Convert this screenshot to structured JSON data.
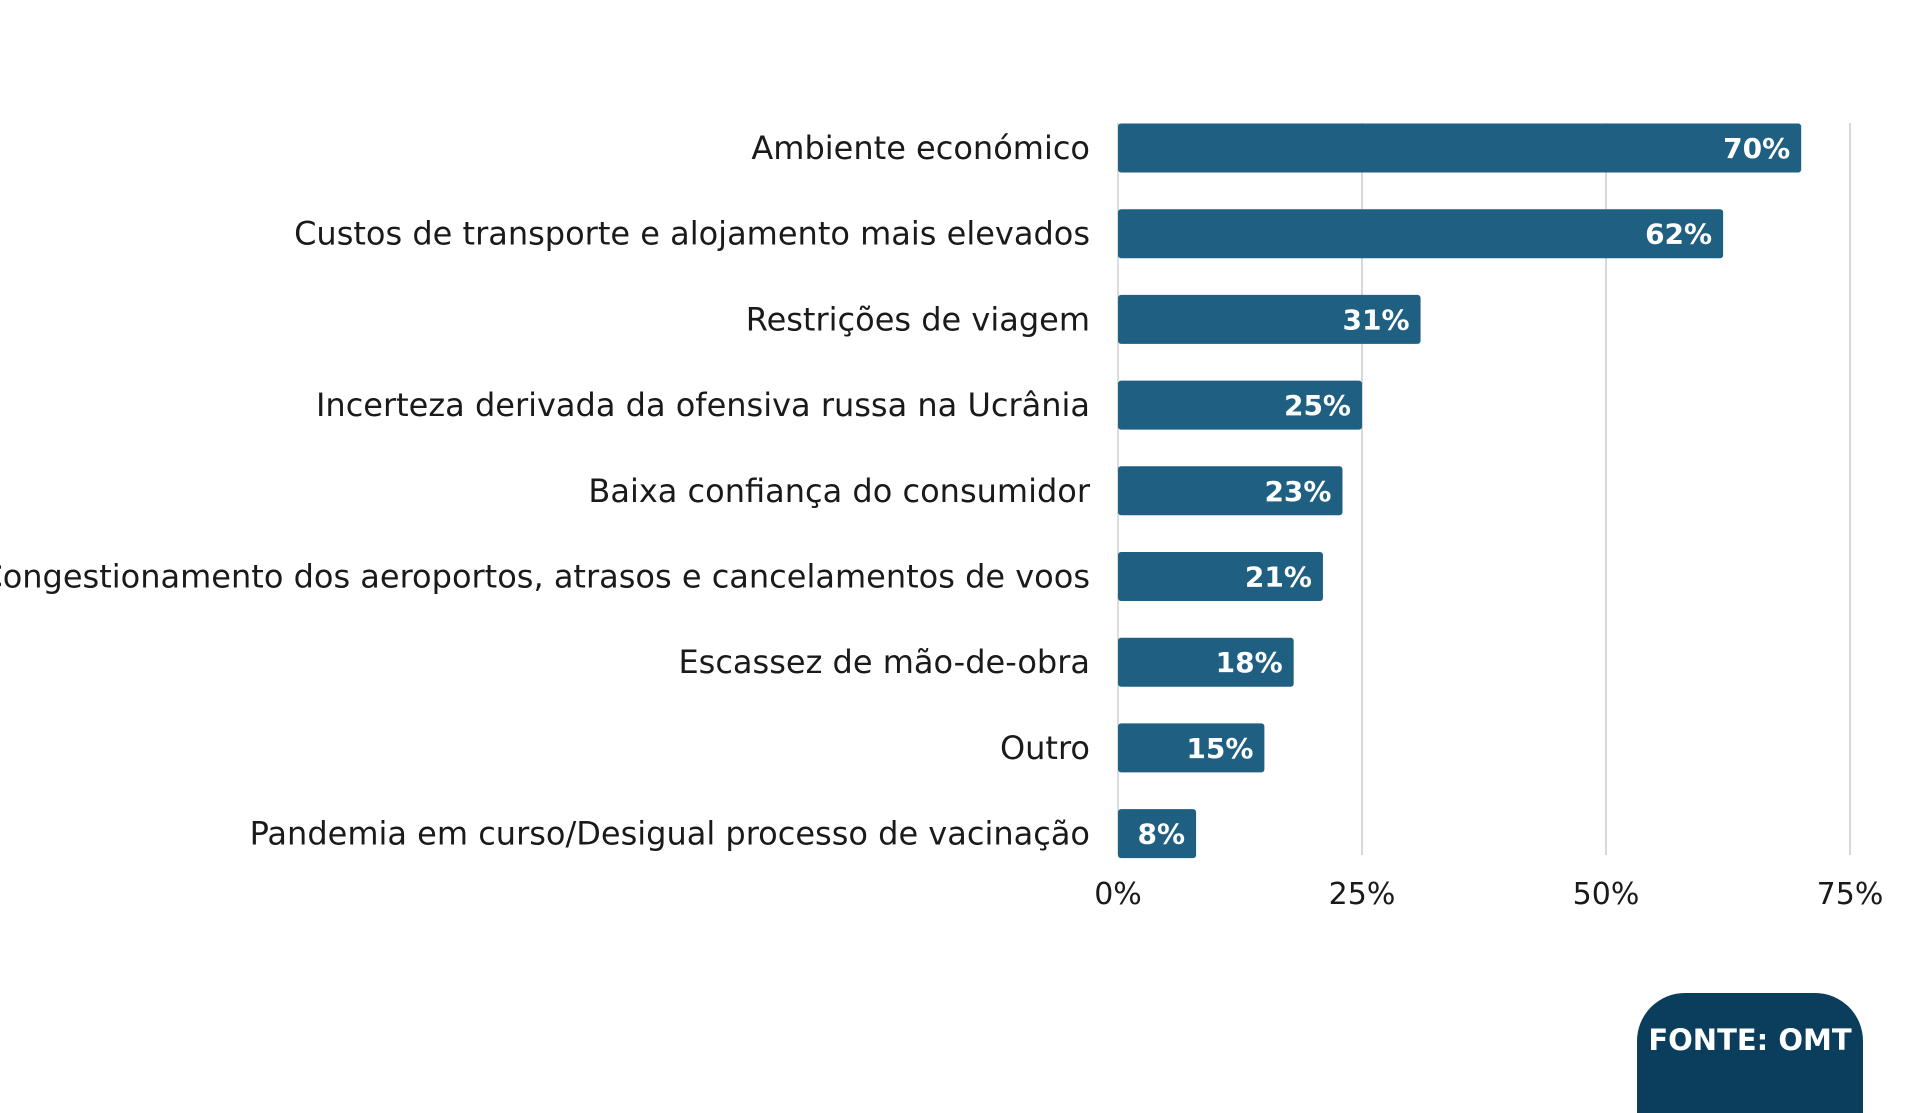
{
  "chart_data": {
    "type": "bar",
    "orientation": "horizontal",
    "categories": [
      "Ambiente económico",
      "Custos de transporte e alojamento mais elevados",
      "Restrições de viagem",
      "Incerteza derivada da ofensiva russa na Ucrânia",
      "Baixa confiança do consumidor",
      "Congestionamento dos aeroportos, atrasos e cancelamentos de voos",
      "Escassez de mão-de-obra",
      "Outro",
      "Pandemia em curso/Desigual processo de vacinação"
    ],
    "values": [
      70,
      62,
      31,
      25,
      23,
      21,
      18,
      15,
      8
    ],
    "data_labels": [
      "70%",
      "62%",
      "31%",
      "25%",
      "23%",
      "21%",
      "18%",
      "15%",
      "8%"
    ],
    "xlim": [
      0,
      75
    ],
    "xticks": [
      0,
      25,
      50,
      75
    ],
    "xtick_labels": [
      "0%",
      "25%",
      "50%",
      "75%"
    ],
    "grid": "vertical",
    "legend": "none",
    "bar_color": "#1f5f82",
    "grid_color": "#cccccc"
  },
  "source": {
    "label": "FONTE: OMT",
    "color": "#0b3d5c"
  }
}
